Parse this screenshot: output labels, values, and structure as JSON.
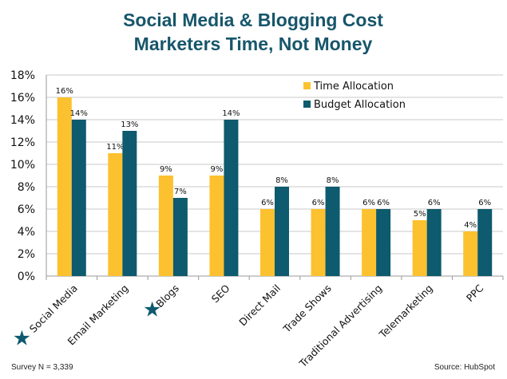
{
  "chart_data": {
    "type": "bar",
    "title": [
      "Social Media & Blogging Cost",
      "Marketers Time, Not Money"
    ],
    "categories": [
      "Social Media",
      "Email Marketing",
      "Blogs",
      "SEO",
      "Direct Mail",
      "Trade Shows",
      "Traditional Advertising",
      "Telemarketing",
      "PPC"
    ],
    "starred_categories": [
      "Social Media",
      "Blogs"
    ],
    "series": [
      {
        "name": "Time Allocation",
        "values": [
          16,
          11,
          9,
          9,
          6,
          6,
          6,
          5,
          4
        ],
        "color": "#fcc12e"
      },
      {
        "name": "Budget Allocation",
        "values": [
          14,
          13,
          7,
          14,
          8,
          8,
          6,
          6,
          6
        ],
        "color": "#0e5a6e"
      }
    ],
    "data_labels": true,
    "ylim": [
      0,
      18
    ],
    "yticks": [
      "0%",
      "2%",
      "4%",
      "6%",
      "8%",
      "10%",
      "12%",
      "14%",
      "16%",
      "18%"
    ],
    "grid": true,
    "legend": "top-right",
    "xlabel": "",
    "ylabel": ""
  },
  "footer": {
    "survey": "Survey  N = 3,339",
    "source": "Source: HubSpot"
  }
}
